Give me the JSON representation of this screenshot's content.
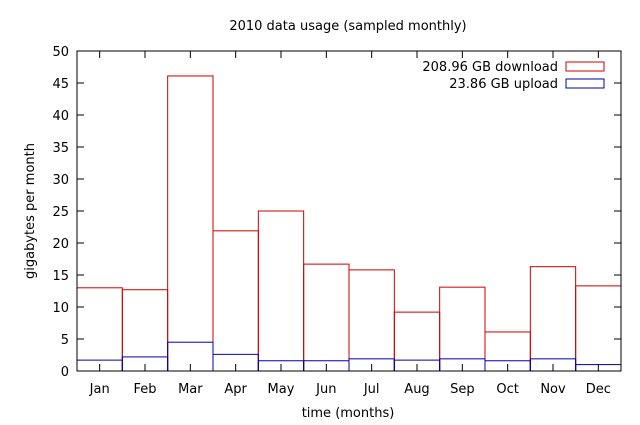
{
  "chart_data": {
    "type": "bar",
    "title": "2010 data usage (sampled monthly)",
    "xlabel": "time (months)",
    "ylabel": "gigabytes per month",
    "ylim": [
      0,
      50
    ],
    "yticks": [
      0,
      5,
      10,
      15,
      20,
      25,
      30,
      35,
      40,
      45,
      50
    ],
    "grid": false,
    "legend_position": "top-right",
    "categories": [
      "Jan",
      "Feb",
      "Mar",
      "Apr",
      "May",
      "Jun",
      "Jul",
      "Aug",
      "Sep",
      "Oct",
      "Nov",
      "Dec"
    ],
    "series": [
      {
        "name": "208.96 GB download",
        "color": "#cc0000",
        "values": [
          13.0,
          12.7,
          46.1,
          21.9,
          25.0,
          16.7,
          15.8,
          9.2,
          13.1,
          6.1,
          16.3,
          13.3
        ]
      },
      {
        "name": "23.86 GB upload",
        "color": "#0000aa",
        "values": [
          1.7,
          2.2,
          4.5,
          2.6,
          1.6,
          1.6,
          1.9,
          1.7,
          1.9,
          1.6,
          1.9,
          1.0
        ]
      }
    ]
  }
}
